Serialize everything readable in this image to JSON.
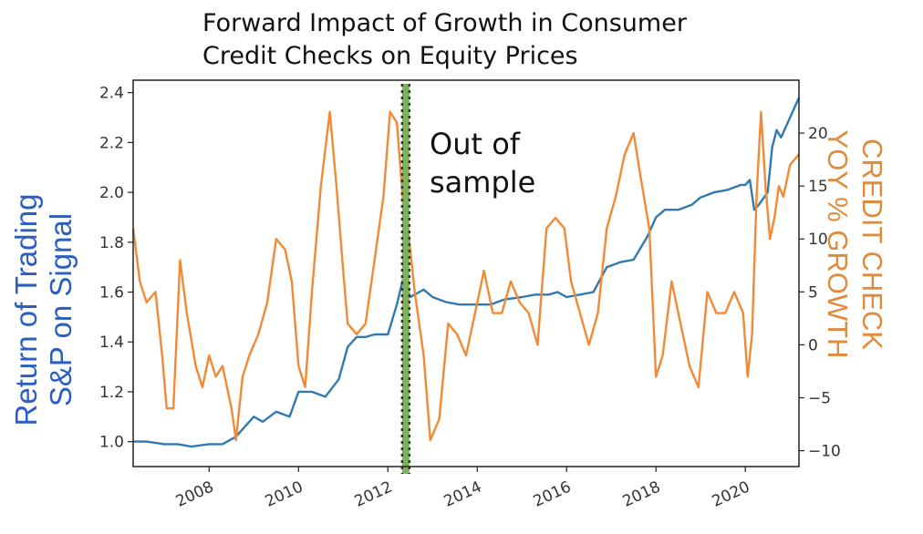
{
  "chart_data": {
    "type": "line",
    "title_lines": [
      "Forward Impact of Growth in Consumer",
      "Credit Checks on Equity Prices"
    ],
    "ylabel_left_lines": [
      "Return of Trading",
      "S&P on Signal"
    ],
    "ylabel_right_lines": [
      "CREDIT CHECK",
      "YOY % GROWTH"
    ],
    "annotation_lines": [
      "Out of",
      "sample"
    ],
    "x_range": [
      2006.3,
      2021.2
    ],
    "x_ticks": [
      2008,
      2010,
      2012,
      2014,
      2016,
      2018,
      2020
    ],
    "y_left_range": [
      0.9,
      2.45
    ],
    "y_left_ticks": [
      1.0,
      1.2,
      1.4,
      1.6,
      1.8,
      2.0,
      2.2,
      2.4
    ],
    "y_right_range": [
      -11.5,
      25.0
    ],
    "y_right_ticks": [
      -10,
      -5,
      0,
      5,
      10,
      15,
      20
    ],
    "y_right_tick_labels": [
      "−10",
      "−5",
      "0",
      "5",
      "10",
      "15",
      "20"
    ],
    "out_of_sample_x": 2012.4,
    "colors": {
      "left_series": "#3279b0",
      "right_series": "#f28a35",
      "divider_fill": "#7fb35a",
      "divider_dots": "#333333",
      "left_label": "#2a5ec2",
      "right_label": "#e08a3c"
    },
    "series": [
      {
        "axis": "left",
        "color": "#3279b0",
        "x": [
          2006.3,
          2006.6,
          2007.0,
          2007.3,
          2007.6,
          2008.0,
          2008.3,
          2008.6,
          2008.8,
          2009.0,
          2009.2,
          2009.5,
          2009.8,
          2010.0,
          2010.3,
          2010.6,
          2010.9,
          2011.1,
          2011.3,
          2011.5,
          2011.7,
          2012.0,
          2012.2,
          2012.35,
          2012.5,
          2012.8,
          2013.0,
          2013.3,
          2013.6,
          2014.0,
          2014.3,
          2014.6,
          2015.0,
          2015.3,
          2015.6,
          2015.8,
          2016.0,
          2016.3,
          2016.6,
          2016.9,
          2017.2,
          2017.5,
          2017.8,
          2018.0,
          2018.2,
          2018.5,
          2018.8,
          2019.0,
          2019.3,
          2019.6,
          2019.9,
          2020.0,
          2020.1,
          2020.2,
          2020.3,
          2020.5,
          2020.6,
          2020.7,
          2020.8,
          2021.0,
          2021.2
        ],
        "y": [
          1.0,
          1.0,
          0.99,
          0.99,
          0.98,
          0.99,
          0.99,
          1.02,
          1.06,
          1.1,
          1.08,
          1.12,
          1.1,
          1.2,
          1.2,
          1.18,
          1.25,
          1.38,
          1.42,
          1.42,
          1.43,
          1.43,
          1.55,
          1.66,
          1.58,
          1.61,
          1.58,
          1.56,
          1.55,
          1.55,
          1.55,
          1.57,
          1.58,
          1.59,
          1.59,
          1.6,
          1.58,
          1.59,
          1.6,
          1.7,
          1.72,
          1.73,
          1.82,
          1.9,
          1.93,
          1.93,
          1.95,
          1.98,
          2.0,
          2.01,
          2.03,
          2.03,
          2.05,
          1.93,
          1.95,
          2.0,
          2.18,
          2.25,
          2.22,
          2.3,
          2.38
        ]
      },
      {
        "axis": "right",
        "color": "#f28a35",
        "x": [
          2006.3,
          2006.45,
          2006.6,
          2006.8,
          2006.95,
          2007.05,
          2007.2,
          2007.35,
          2007.5,
          2007.7,
          2007.85,
          2008.0,
          2008.15,
          2008.3,
          2008.5,
          2008.6,
          2008.75,
          2008.9,
          2009.1,
          2009.3,
          2009.5,
          2009.7,
          2009.85,
          2010.0,
          2010.15,
          2010.3,
          2010.5,
          2010.7,
          2010.85,
          2011.0,
          2011.1,
          2011.3,
          2011.5,
          2011.7,
          2011.9,
          2012.05,
          2012.2,
          2012.35,
          2012.45,
          2012.6,
          2012.8,
          2012.95,
          2013.15,
          2013.35,
          2013.55,
          2013.75,
          2013.95,
          2014.15,
          2014.35,
          2014.55,
          2014.75,
          2014.95,
          2015.15,
          2015.35,
          2015.55,
          2015.75,
          2015.95,
          2016.1,
          2016.3,
          2016.5,
          2016.7,
          2016.9,
          2017.1,
          2017.3,
          2017.5,
          2017.65,
          2017.85,
          2018.0,
          2018.15,
          2018.35,
          2018.55,
          2018.75,
          2018.95,
          2019.15,
          2019.35,
          2019.55,
          2019.75,
          2019.95,
          2020.05,
          2020.15,
          2020.25,
          2020.35,
          2020.45,
          2020.55,
          2020.65,
          2020.75,
          2020.85,
          2021.0,
          2021.2
        ],
        "y": [
          11,
          6,
          4,
          5,
          -1,
          -6,
          -6,
          8,
          3,
          -2,
          -4,
          -1,
          -3,
          -2,
          -6,
          -9,
          -3,
          -1,
          1,
          4,
          10,
          9,
          6,
          -2,
          -4,
          5,
          15,
          22,
          15,
          7,
          2,
          1,
          2,
          8,
          14,
          22,
          21,
          13,
          11,
          5,
          -1,
          -9,
          -7,
          2,
          1,
          -1,
          3,
          7,
          3,
          3,
          6,
          4,
          3,
          0,
          11,
          12,
          11,
          6,
          3,
          0,
          3,
          11,
          14,
          18,
          20,
          16,
          11,
          -3,
          -1,
          6,
          2,
          -2,
          -4,
          5,
          3,
          3,
          5,
          3,
          -3,
          1,
          14,
          22,
          15,
          10,
          12,
          15,
          14,
          17,
          18
        ]
      }
    ]
  }
}
